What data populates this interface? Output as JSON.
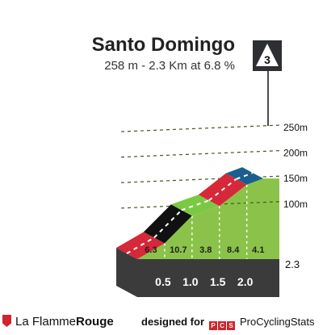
{
  "header": {
    "title": "Santo Domingo",
    "subtitle": "258 m - 2.3 Km at 6.8 %"
  },
  "climb": {
    "category": "3",
    "finish_distance_label": "2.3"
  },
  "chart_data": {
    "type": "area",
    "title": "Santo Domingo",
    "subtitle": "258 m - 2.3 Km at 6.8 %",
    "x_unit": "km",
    "y_unit": "m",
    "xlim": [
      0,
      2.3
    ],
    "ylim": [
      0,
      258
    ],
    "y_ticks": [
      {
        "value": 100,
        "label": "100m"
      },
      {
        "value": 150,
        "label": "150m"
      },
      {
        "value": 200,
        "label": "200m"
      },
      {
        "value": 250,
        "label": "250m"
      }
    ],
    "x_ticks": [
      {
        "value": 0.5,
        "label": "0.5"
      },
      {
        "value": 1.0,
        "label": "1.0"
      },
      {
        "value": 1.5,
        "label": "1.5"
      },
      {
        "value": 2.0,
        "label": "2.0"
      }
    ],
    "segments": [
      {
        "x0": 0.0,
        "x1": 0.5,
        "gradient": "6.3",
        "color": "#d62838"
      },
      {
        "x0": 0.5,
        "x1": 1.0,
        "gradient": "10.7",
        "color": "#111111"
      },
      {
        "x0": 1.0,
        "x1": 1.5,
        "gradient": "3.8",
        "color": "#7ac943"
      },
      {
        "x0": 1.5,
        "x1": 2.0,
        "gradient": "8.4",
        "color": "#d62838"
      },
      {
        "x0": 2.0,
        "x1": 2.3,
        "gradient": "4.1",
        "color": "#1a5e8e"
      }
    ],
    "profile": [
      {
        "x": 0.0,
        "y": 0
      },
      {
        "x": 0.5,
        "y": 31
      },
      {
        "x": 1.0,
        "y": 85
      },
      {
        "x": 1.5,
        "y": 104
      },
      {
        "x": 2.0,
        "y": 146
      },
      {
        "x": 2.3,
        "y": 158
      }
    ],
    "grid": true
  },
  "footer": {
    "brand_prefix": "La Flamme",
    "brand_suffix": "Rouge",
    "designed_label": "designed for",
    "pcs_letters": [
      "P",
      "C",
      "S"
    ],
    "pcs_name": "ProCyclingStats"
  },
  "colors": {
    "fill": "#8bc34a",
    "base": "#3b3b3b",
    "side": "#b5aea6",
    "label": "#1f1f1f"
  }
}
